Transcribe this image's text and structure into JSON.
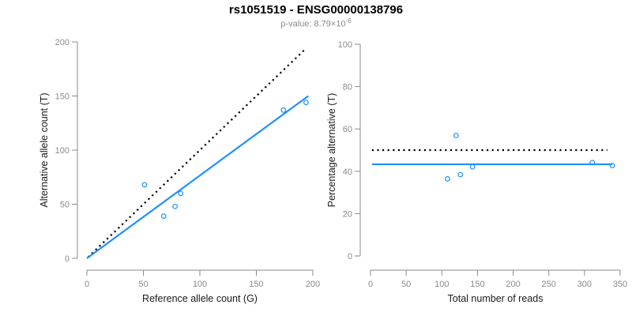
{
  "header": {
    "title": "rs1051519 - ENSG00000138796",
    "pvalue_prefix": "p-value: 8.79×",
    "pvalue_base": "10",
    "pvalue_exponent": "-6"
  },
  "colors": {
    "accent_blue": "#1E90FF",
    "line_black": "#000000",
    "axis_gray": "#8a8a8a",
    "tick_label_gray": "#8a8a8a",
    "title_black": "#000000",
    "subtitle_gray": "#8a8a8a"
  },
  "chart_data": [
    {
      "type": "scatter",
      "title": "rs1051519 - ENSG00000138796",
      "subtitle": "p-value: 8.79×10^-6",
      "xlabel": "Reference allele count (G)",
      "ylabel": "Alternative allele count (T)",
      "xlim": [
        0,
        200
      ],
      "ylim": [
        0,
        200
      ],
      "xticks": [
        0,
        50,
        100,
        150,
        200
      ],
      "yticks": [
        0,
        50,
        100,
        150,
        200
      ],
      "grid": false,
      "legend": false,
      "marker": {
        "shape": "open-circle",
        "color": "#1E90FF"
      },
      "points": [
        {
          "x": 51,
          "y": 68
        },
        {
          "x": 68,
          "y": 39
        },
        {
          "x": 78,
          "y": 48
        },
        {
          "x": 83,
          "y": 60
        },
        {
          "x": 174,
          "y": 137
        },
        {
          "x": 194,
          "y": 144
        }
      ],
      "lines": [
        {
          "name": "identity-line",
          "style": "dotted",
          "color": "#000000",
          "x1": 1,
          "y1": 1,
          "x2": 194,
          "y2": 194
        },
        {
          "name": "regression-line",
          "style": "solid",
          "color": "#1E90FF",
          "x1": 0,
          "y1": 0,
          "x2": 196,
          "y2": 150
        }
      ]
    },
    {
      "type": "scatter",
      "title": "",
      "subtitle": "",
      "xlabel": "Total number of reads",
      "ylabel": "Percentage alternative (T)",
      "xlim": [
        0,
        350
      ],
      "ylim": [
        0,
        100
      ],
      "xticks": [
        0,
        50,
        100,
        150,
        200,
        250,
        300,
        350
      ],
      "yticks": [
        0,
        20,
        40,
        60,
        80,
        100
      ],
      "grid": false,
      "legend": false,
      "marker": {
        "shape": "open-circle",
        "color": "#1E90FF"
      },
      "points": [
        {
          "x": 108,
          "y": 36.4
        },
        {
          "x": 120,
          "y": 56.9
        },
        {
          "x": 126,
          "y": 38.4
        },
        {
          "x": 143,
          "y": 42.1
        },
        {
          "x": 311,
          "y": 44.1
        },
        {
          "x": 339,
          "y": 42.7
        }
      ],
      "lines": [
        {
          "name": "expected-50-percent-line",
          "style": "dotted",
          "color": "#000000",
          "x1": 2,
          "y1": 50,
          "x2": 332,
          "y2": 50
        },
        {
          "name": "observed-ratio-line",
          "style": "solid",
          "color": "#1E90FF",
          "x1": 2,
          "y1": 43.3,
          "x2": 339,
          "y2": 43.3
        }
      ]
    }
  ]
}
